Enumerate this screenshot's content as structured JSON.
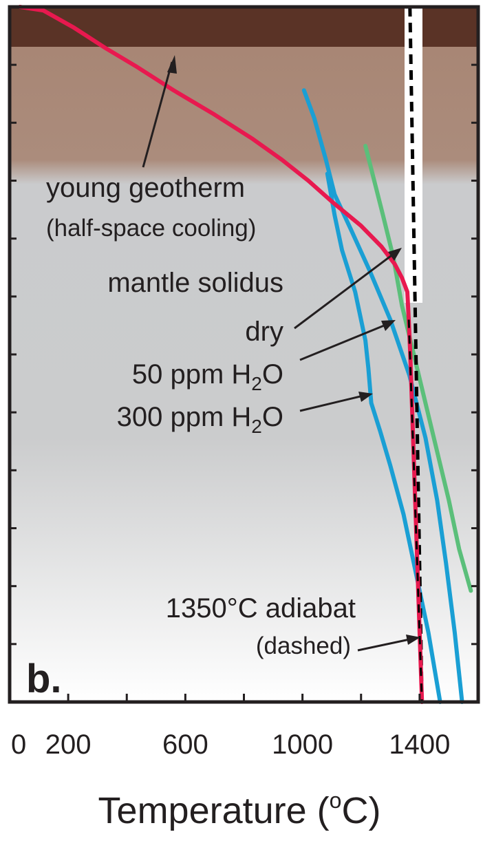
{
  "chart_data": {
    "type": "line",
    "panel_label": "b.",
    "xlabel": "Temperature (",
    "xlabel_unit_sup": "o",
    "xlabel_unit_tail": "C)",
    "xlim": [
      0,
      1600
    ],
    "x_ticks": [
      0,
      200,
      600,
      1000,
      1400
    ],
    "x_tick_labels": [
      "0",
      "200",
      "600",
      "1000",
      "1400"
    ],
    "y_label": "",
    "series": [
      {
        "key": "young_geotherm",
        "color": "#e8194f",
        "points": [
          [
            35,
            0
          ],
          [
            115,
            0.005
          ],
          [
            220,
            0.03
          ],
          [
            330,
            0.06
          ],
          [
            430,
            0.085
          ],
          [
            560,
            0.12
          ],
          [
            700,
            0.155
          ],
          [
            830,
            0.19
          ],
          [
            930,
            0.22
          ],
          [
            1020,
            0.25
          ],
          [
            1100,
            0.28
          ],
          [
            1200,
            0.315
          ],
          [
            1270,
            0.345
          ],
          [
            1315,
            0.37
          ],
          [
            1340,
            0.39
          ],
          [
            1358,
            0.41
          ],
          [
            1363,
            0.45
          ],
          [
            1368,
            0.5
          ],
          [
            1376,
            0.6
          ],
          [
            1384,
            0.7
          ],
          [
            1392,
            0.8
          ],
          [
            1400,
            0.9
          ],
          [
            1408,
            1.0
          ]
        ]
      },
      {
        "key": "solidus_dry",
        "color": "#5bbf7a",
        "points": [
          [
            1215,
            0.2
          ],
          [
            1245,
            0.25
          ],
          [
            1275,
            0.3
          ],
          [
            1310,
            0.36
          ],
          [
            1340,
            0.43
          ],
          [
            1380,
            0.5
          ],
          [
            1420,
            0.57
          ],
          [
            1460,
            0.64
          ],
          [
            1500,
            0.71
          ],
          [
            1535,
            0.78
          ],
          [
            1575,
            0.84
          ]
        ]
      },
      {
        "key": "solidus_50ppm",
        "color": "#1a9fd4",
        "points": [
          [
            1005,
            0.12
          ],
          [
            1040,
            0.16
          ],
          [
            1080,
            0.22
          ],
          [
            1110,
            0.27
          ],
          [
            1165,
            0.32
          ],
          [
            1230,
            0.38
          ],
          [
            1300,
            0.45
          ],
          [
            1365,
            0.53
          ],
          [
            1420,
            0.62
          ],
          [
            1460,
            0.71
          ],
          [
            1490,
            0.8
          ],
          [
            1520,
            0.9
          ],
          [
            1545,
            1.0
          ]
        ]
      },
      {
        "key": "solidus_300ppm",
        "color": "#1a9fd4",
        "points": [
          [
            1085,
            0.24
          ],
          [
            1110,
            0.3
          ],
          [
            1135,
            0.35
          ],
          [
            1180,
            0.41
          ],
          [
            1215,
            0.48
          ],
          [
            1225,
            0.52
          ],
          [
            1235,
            0.57
          ],
          [
            1265,
            0.61
          ],
          [
            1300,
            0.66
          ],
          [
            1345,
            0.73
          ],
          [
            1380,
            0.8
          ],
          [
            1430,
            0.9
          ],
          [
            1470,
            1.0
          ]
        ]
      },
      {
        "key": "adiabat_1350",
        "color": "#000000",
        "dashed": true,
        "points": [
          [
            1367,
            0
          ],
          [
            1408,
            1.0
          ]
        ]
      }
    ],
    "annotations": [
      {
        "text": "young geotherm",
        "style": "normal"
      },
      {
        "text": "(half-space cooling)",
        "style": "small"
      },
      {
        "text": "mantle solidus",
        "style": "normal"
      },
      {
        "text": "dry",
        "style": "normal"
      },
      {
        "text": "50 ppm H",
        "sub": "2",
        "tail": "O",
        "style": "normal"
      },
      {
        "text": "300 ppm H",
        "sub": "2",
        "tail": "O",
        "style": "normal"
      },
      {
        "text": "1350°C adiabat",
        "style": "normal"
      },
      {
        "text": "(dashed)",
        "style": "small"
      }
    ],
    "background_layers": [
      "dark brown lithosphere top",
      "light brown zone",
      "grey mantle gradient"
    ],
    "colors": {
      "geotherm": "#e8194f",
      "solidus_dry": "#5bbf7a",
      "solidus_wet": "#1a9fd4",
      "adiabat": "#000000",
      "layer_dark": "#5a3326",
      "layer_brown": "#a78472",
      "mantle_grey": "#cacbcd"
    },
    "grid": false
  }
}
